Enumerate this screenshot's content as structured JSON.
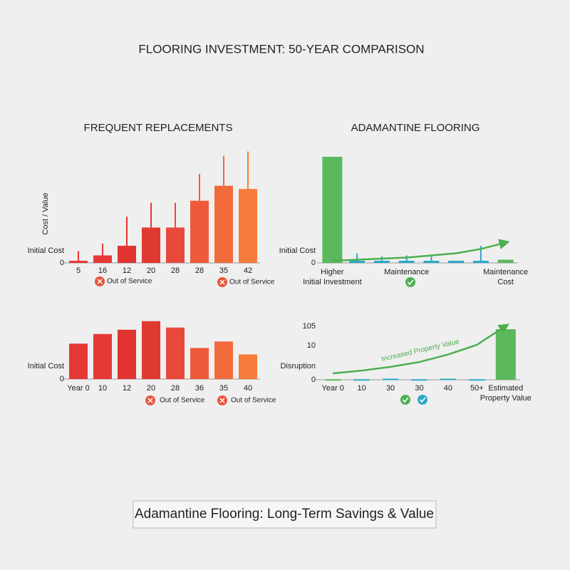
{
  "title": "FLOORING INVESTMENT: 50-YEAR COMPARISON",
  "footer": "Adamantine Flooring: Long-Term Savings & Value",
  "chart_data": [
    {
      "type": "bar",
      "title": "FREQUENT REPLACEMENTS",
      "ylabel": "Cost / Value",
      "categories": [
        "5",
        "16",
        "12",
        "20",
        "28",
        "28",
        "35",
        "42"
      ],
      "values": [
        2,
        7,
        16,
        33,
        33,
        58,
        72,
        69
      ],
      "peaks": [
        11,
        18,
        43,
        56,
        56,
        83,
        100,
        104
      ],
      "colors": [
        "#e53935",
        "#e53935",
        "#e0352f",
        "#e03a30",
        "#e8493a",
        "#ef5a3a",
        "#f26b3c",
        "#f57c3a"
      ],
      "ylim": [
        0,
        105
      ],
      "y_labels": [
        "Initial Cost",
        "0"
      ],
      "annotations": [
        "Out of Service",
        "Out of Service"
      ]
    },
    {
      "type": "bar",
      "title": "ADAMANTINE FLOORING",
      "categories": [
        "Higher Initial Investment",
        null,
        null,
        "Maintenance",
        null,
        null,
        null,
        "Maintenance Cost"
      ],
      "values": [
        99,
        2,
        2,
        2,
        2,
        2,
        2,
        3
      ],
      "peaks": [
        null,
        9,
        6,
        7,
        6,
        null,
        16,
        null
      ],
      "trend": [
        2,
        3,
        4,
        5,
        7,
        9,
        13,
        19
      ],
      "colors": [
        "#5cb85c",
        "#2aa7c9",
        "#2aa7c9",
        "#2aa7c9",
        "#2aa7c9",
        "#2aa7c9",
        "#2aa7c9",
        "#5cb85c"
      ],
      "ylim": [
        0,
        105
      ],
      "y_labels": [
        "Initial Cost",
        "0"
      ]
    },
    {
      "type": "bar",
      "categories": [
        "Year 0",
        "10",
        "12",
        "20",
        "28",
        "36",
        "35",
        "40"
      ],
      "values": [
        33,
        42,
        46,
        54,
        48,
        29,
        35,
        23
      ],
      "colors": [
        "#e53935",
        "#e53935",
        "#e0352f",
        "#e03a30",
        "#e8493a",
        "#ef5a3a",
        "#f26b3c",
        "#f57c3a"
      ],
      "ylim": [
        0,
        105
      ],
      "y_labels": [
        "Initial Cost",
        "0"
      ],
      "annotations": [
        "Out of Service",
        "Out of Service"
      ]
    },
    {
      "type": "bar",
      "categories": [
        "Year 0",
        "10",
        "30",
        "30",
        "40",
        "50+",
        "Estimated Property Value"
      ],
      "values": [
        1,
        1,
        2,
        1,
        2,
        1,
        94
      ],
      "trend": [
        12,
        17,
        24,
        33,
        47,
        65,
        100
      ],
      "trend_label": "Increased Property Value",
      "colors": [
        "#5cb85c",
        "#2aa7c9",
        "#2aa7c9",
        "#2aa7c9",
        "#2aa7c9",
        "#2aa7c9",
        "#5cb85c"
      ],
      "ylim": [
        0,
        110
      ],
      "y_labels": [
        "105",
        "10",
        "Disruption",
        "0"
      ]
    }
  ]
}
